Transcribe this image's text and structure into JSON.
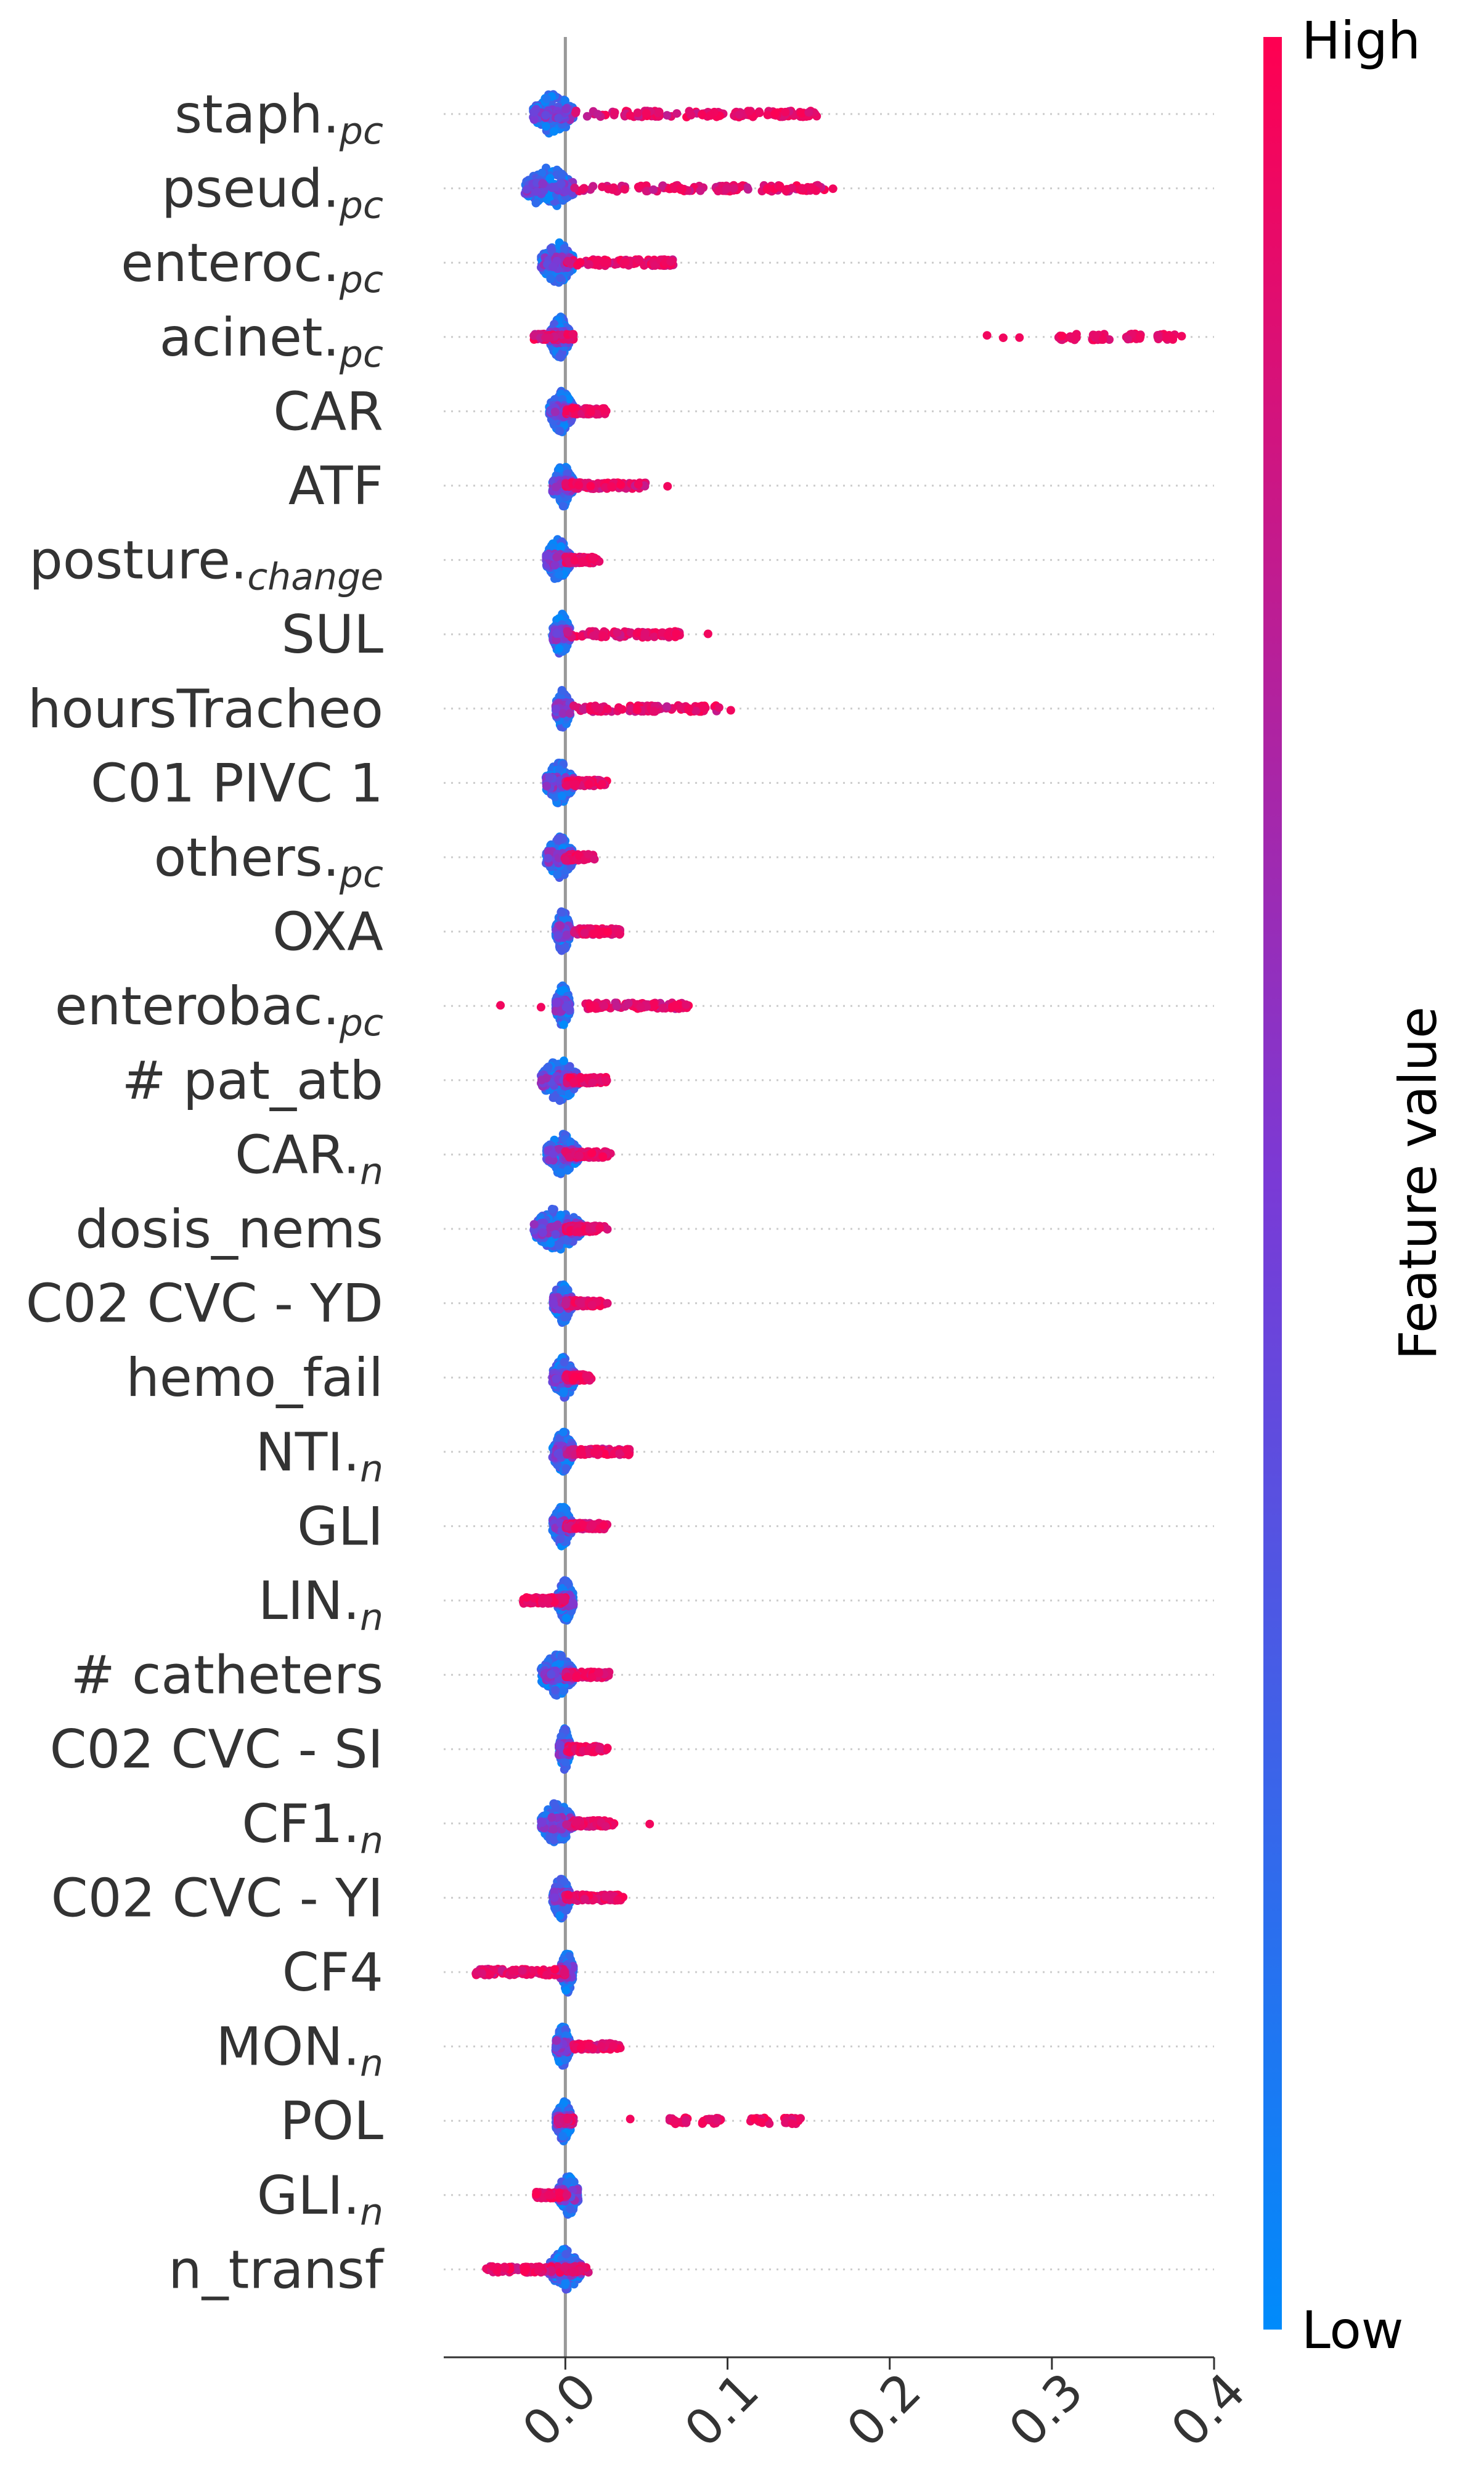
{
  "chart_data": {
    "type": "scatter",
    "subtype": "shap-beeswarm",
    "xlabel": "",
    "xlim": [
      -0.075,
      0.4
    ],
    "xticks": [
      0.0,
      0.1,
      0.2,
      0.3,
      0.4
    ],
    "xtick_labels": [
      "0.0",
      "0.1",
      "0.2",
      "0.3",
      "0.4"
    ],
    "zero_line": 0.0,
    "colorbar": {
      "title": "Feature value",
      "high_label": "High",
      "low_label": "Low",
      "low_color": "#008bfb",
      "high_color": "#ff0051"
    },
    "features": [
      {
        "label": "staph.",
        "sub": "pc",
        "low_range": [
          -0.02,
          0.005
        ],
        "high_range": [
          0.005,
          0.15
        ],
        "high_clusters": [
          0.055,
          0.09,
          0.11,
          0.13,
          0.15
        ],
        "sparse": [
          0.04,
          0.05
        ]
      },
      {
        "label": "pseud.",
        "sub": "pc",
        "low_range": [
          -0.025,
          0.005
        ],
        "high_range": [
          0.005,
          0.165
        ],
        "high_clusters": [
          0.07,
          0.1,
          0.13,
          0.15
        ],
        "sparse": [
          0.045,
          0.165
        ]
      },
      {
        "label": "enteroc.",
        "sub": "pc",
        "low_range": [
          -0.015,
          0.005
        ],
        "high_range": [
          0.0,
          0.068
        ],
        "high_clusters": [
          0.02,
          0.04,
          0.06
        ],
        "sparse": []
      },
      {
        "label": "acinet.",
        "sub": "pc",
        "low_range": [
          -0.01,
          0.003
        ],
        "high_range": [
          -0.02,
          0.005
        ],
        "high_clusters": [
          0.31,
          0.33,
          0.35,
          0.37
        ],
        "sparse": [
          0.26,
          0.27,
          0.28,
          0.38
        ]
      },
      {
        "label": "CAR",
        "sub": "",
        "low_range": [
          -0.01,
          0.005
        ],
        "high_range": [
          0.0,
          0.022
        ],
        "high_clusters": [
          0.01,
          0.02
        ],
        "sparse": []
      },
      {
        "label": "ATF",
        "sub": "",
        "low_range": [
          -0.008,
          0.005
        ],
        "high_range": [
          0.0,
          0.05
        ],
        "high_clusters": [
          0.01,
          0.03
        ],
        "sparse": [
          0.045,
          0.063
        ]
      },
      {
        "label": "posture.",
        "sub": "change",
        "low_range": [
          -0.012,
          0.003
        ],
        "high_range": [
          0.0,
          0.018
        ],
        "high_clusters": [
          0.008,
          0.015
        ],
        "sparse": []
      },
      {
        "label": "SUL",
        "sub": "",
        "low_range": [
          -0.008,
          0.003
        ],
        "high_range": [
          0.0,
          0.07
        ],
        "high_clusters": [
          0.02,
          0.05,
          0.065
        ],
        "sparse": [
          0.088
        ]
      },
      {
        "label": "hoursTracheo",
        "sub": "",
        "low_range": [
          -0.006,
          0.003
        ],
        "high_range": [
          0.0,
          0.095
        ],
        "high_clusters": [
          0.02,
          0.05,
          0.08
        ],
        "sparse": [
          0.102
        ]
      },
      {
        "label": "C01 PIVC 1",
        "sub": "",
        "low_range": [
          -0.012,
          0.005
        ],
        "high_range": [
          0.0,
          0.022
        ],
        "high_clusters": [
          0.01,
          0.02
        ],
        "sparse": []
      },
      {
        "label": "others.",
        "sub": "pc",
        "low_range": [
          -0.012,
          0.005
        ],
        "high_range": [
          0.0,
          0.014
        ],
        "high_clusters": [
          0.005,
          0.012
        ],
        "sparse": []
      },
      {
        "label": "OXA",
        "sub": "",
        "low_range": [
          -0.006,
          0.003
        ],
        "high_range": [
          0.005,
          0.03
        ],
        "high_clusters": [
          0.015,
          0.028
        ],
        "sparse": []
      },
      {
        "label": "enterobac.",
        "sub": "pc",
        "low_range": [
          -0.006,
          0.003
        ],
        "high_range": [
          0.012,
          0.073
        ],
        "high_clusters": [
          0.02,
          0.05,
          0.07
        ],
        "sparse": [
          -0.04,
          -0.015
        ]
      },
      {
        "label": "# pat_atb",
        "sub": "",
        "low_range": [
          -0.015,
          0.008
        ],
        "high_range": [
          0.0,
          0.022
        ],
        "high_clusters": [
          0.01,
          0.02
        ],
        "sparse": []
      },
      {
        "label": "CAR.",
        "sub": "n",
        "low_range": [
          -0.012,
          0.008
        ],
        "high_range": [
          0.0,
          0.025
        ],
        "high_clusters": [
          0.012,
          0.022
        ],
        "sparse": []
      },
      {
        "label": "dosis_nems",
        "sub": "",
        "low_range": [
          -0.02,
          0.01
        ],
        "high_range": [
          0.0,
          0.02
        ],
        "high_clusters": [
          0.012,
          0.02
        ],
        "sparse": []
      },
      {
        "label": "C02 CVC - YD",
        "sub": "",
        "low_range": [
          -0.008,
          0.004
        ],
        "high_range": [
          0.0,
          0.022
        ],
        "high_clusters": [
          0.012,
          0.02
        ],
        "sparse": []
      },
      {
        "label": "hemo_fail",
        "sub": "",
        "low_range": [
          -0.008,
          0.006
        ],
        "high_range": [
          0.0,
          0.012
        ],
        "high_clusters": [
          0.006,
          0.01
        ],
        "sparse": []
      },
      {
        "label": "NTI.",
        "sub": "n",
        "low_range": [
          -0.008,
          0.005
        ],
        "high_range": [
          0.0,
          0.04
        ],
        "high_clusters": [
          0.015,
          0.035
        ],
        "sparse": []
      },
      {
        "label": "GLI",
        "sub": "",
        "low_range": [
          -0.008,
          0.004
        ],
        "high_range": [
          0.0,
          0.022
        ],
        "high_clusters": [
          0.012,
          0.02
        ],
        "sparse": []
      },
      {
        "label": "LIN.",
        "sub": "n",
        "low_range": [
          -0.005,
          0.005
        ],
        "high_range": [
          -0.025,
          0.0
        ],
        "high_clusters": [
          -0.02,
          -0.01
        ],
        "sparse": []
      },
      {
        "label": "# catheters",
        "sub": "",
        "low_range": [
          -0.015,
          0.005
        ],
        "high_range": [
          0.0,
          0.025
        ],
        "high_clusters": [
          0.012,
          0.022
        ],
        "sparse": []
      },
      {
        "label": "C02 CVC - SI",
        "sub": "",
        "low_range": [
          -0.004,
          0.003
        ],
        "high_range": [
          0.0,
          0.022
        ],
        "high_clusters": [
          0.012,
          0.02
        ],
        "sparse": []
      },
      {
        "label": "CF1.",
        "sub": "n",
        "low_range": [
          -0.015,
          0.005
        ],
        "high_range": [
          0.0,
          0.028
        ],
        "high_clusters": [
          0.012,
          0.025
        ],
        "sparse": [
          0.052
        ]
      },
      {
        "label": "C02 CVC - YI",
        "sub": "",
        "low_range": [
          -0.008,
          0.003
        ],
        "high_range": [
          0.0,
          0.033
        ],
        "high_clusters": [
          0.015,
          0.03
        ],
        "sparse": []
      },
      {
        "label": "CF4",
        "sub": "",
        "low_range": [
          -0.003,
          0.005
        ],
        "high_range": [
          -0.055,
          0.0
        ],
        "high_clusters": [
          -0.05,
          -0.03,
          -0.01
        ],
        "sparse": []
      },
      {
        "label": "MON.",
        "sub": "n",
        "low_range": [
          -0.006,
          0.003
        ],
        "high_range": [
          0.005,
          0.03
        ],
        "high_clusters": [
          0.012,
          0.028
        ],
        "sparse": []
      },
      {
        "label": "POL",
        "sub": "",
        "low_range": [
          -0.006,
          0.004
        ],
        "high_range": [
          -0.005,
          0.005
        ],
        "high_clusters": [
          0.07,
          0.09,
          0.12,
          0.14
        ],
        "sparse": [
          0.04
        ]
      },
      {
        "label": "GLI.",
        "sub": "n",
        "low_range": [
          -0.005,
          0.008
        ],
        "high_range": [
          -0.018,
          0.0
        ],
        "high_clusters": [
          -0.012,
          -0.005
        ],
        "sparse": []
      },
      {
        "label": "n_transf",
        "sub": "",
        "low_range": [
          -0.01,
          0.01
        ],
        "high_range": [
          -0.05,
          0.015
        ],
        "high_clusters": [
          -0.04,
          -0.02,
          0.005
        ],
        "sparse": []
      }
    ]
  }
}
